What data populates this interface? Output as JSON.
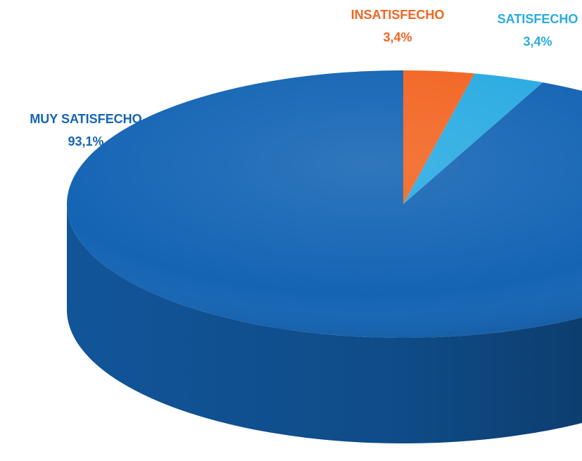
{
  "chart_data": {
    "type": "pie",
    "categories": [
      "INSATISFECHO",
      "SATISFECHO",
      "MUY SATISFECHO"
    ],
    "values": [
      3.4,
      3.4,
      93.1
    ],
    "value_labels": [
      "3,4%",
      "3,4%",
      "93,1%"
    ],
    "colors": [
      "#f26522",
      "#29abe2",
      "#1464b4"
    ]
  }
}
